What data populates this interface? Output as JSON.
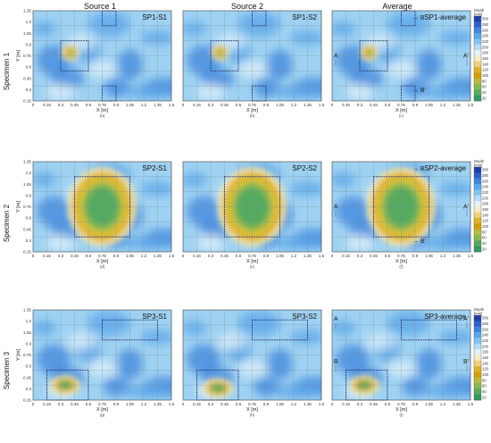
{
  "figure": {
    "column_headers": [
      "Source 1",
      "Source 2",
      "Average"
    ],
    "row_headers": [
      "Specimen 1",
      "Specimen 2",
      "Specimen 3"
    ]
  },
  "colorbar": {
    "title_line1": "Depth",
    "title_line2": "[mm]",
    "ticks": [
      "300",
      "280",
      "260",
      "240",
      "220",
      "200",
      "180",
      "160",
      "140",
      "120",
      "100",
      "80",
      "60",
      "40",
      "20"
    ],
    "colors": [
      "#1f3fa8",
      "#2b62c8",
      "#3f86dd",
      "#5aa6ea",
      "#84c4f1",
      "#b4dcf6",
      "#e2f2f8",
      "#f6ebc4",
      "#eed27a",
      "#e0b124",
      "#d2a000",
      "#b9bb3a",
      "#86b850",
      "#55aa5e",
      "#2f9a60"
    ]
  },
  "chart_data": [
    {
      "type": "heatmap",
      "title": "SP1-S1",
      "sublabel": "(a)",
      "xlabel": "X [m]",
      "ylabel": "Y [m]",
      "xticks": [
        "0",
        "0.15",
        "0.3",
        "0.45",
        "0.6",
        "0.75",
        "0.9",
        "1.05",
        "1.2",
        "1.35",
        "1.5"
      ],
      "yticks": [
        "0.15",
        "0.3",
        "0.45",
        "0.6",
        "0.75",
        "0.9",
        "1.05",
        "1.2",
        "1.35"
      ],
      "xlim": [
        0,
        1.5
      ],
      "ylim": [
        0.3,
        1.2
      ],
      "defect_zones": [
        [
          0.75,
          1.05,
          0.9,
          1.2
        ],
        [
          0.3,
          0.6,
          0.6,
          0.9
        ],
        [
          0.9,
          1.2,
          0.6,
          0.9
        ],
        [
          0.75,
          0.3,
          0.9,
          0.45
        ]
      ],
      "hot_spots": [
        {
          "x": 0.4,
          "y": 0.78,
          "depth": 120
        }
      ],
      "section_labels": []
    },
    {
      "type": "heatmap",
      "title": "SP1-S2",
      "sublabel": "(b)",
      "xlabel": "X [m]",
      "ylabel": "",
      "xticks": [
        "0",
        "0.15",
        "0.3",
        "0.45",
        "0.6",
        "0.75",
        "0.9",
        "1.05",
        "1.2",
        "1.35",
        "1.5"
      ],
      "yticks": [],
      "xlim": [
        0,
        1.5
      ],
      "ylim": [
        0.3,
        1.2
      ],
      "defect_zones": [
        [
          0.75,
          1.05,
          0.9,
          1.2
        ],
        [
          0.3,
          0.6,
          0.6,
          0.9
        ],
        [
          0.9,
          1.2,
          0.6,
          0.9
        ],
        [
          0.75,
          0.3,
          0.9,
          0.45
        ]
      ],
      "hot_spots": [
        {
          "x": 0.4,
          "y": 0.78,
          "depth": 120
        }
      ],
      "section_labels": []
    },
    {
      "type": "heatmap",
      "title": "SP1-average",
      "sublabel": "(c)",
      "xlabel": "X [m]",
      "ylabel": "",
      "xticks": [
        "0",
        "0.15",
        "0.3",
        "0.45",
        "0.6",
        "0.75",
        "0.9",
        "1.05",
        "1.2",
        "1.35",
        "1.5"
      ],
      "yticks": [],
      "xlim": [
        0,
        1.5
      ],
      "ylim": [
        0.3,
        1.2
      ],
      "defect_zones": [
        [
          0.75,
          1.05,
          0.9,
          1.2
        ],
        [
          0.3,
          0.6,
          0.6,
          0.9
        ],
        [
          0.9,
          1.2,
          0.6,
          0.9
        ],
        [
          0.75,
          0.3,
          0.9,
          0.45
        ]
      ],
      "hot_spots": [
        {
          "x": 0.4,
          "y": 0.78,
          "depth": 120
        }
      ],
      "section_labels": [
        "A",
        "A'",
        "B",
        "B'"
      ]
    },
    {
      "type": "heatmap",
      "title": "SP2-S1",
      "sublabel": "(d)",
      "xlabel": "X [m]",
      "ylabel": "Y [m]",
      "xticks": [
        "0",
        "0.15",
        "0.3",
        "0.45",
        "0.6",
        "0.75",
        "0.9",
        "1.05",
        "1.2",
        "1.35",
        "1.5"
      ],
      "yticks": [
        "0.15",
        "0.3",
        "0.45",
        "0.6",
        "0.75",
        "0.9",
        "1.05",
        "1.2",
        "1.35"
      ],
      "xlim": [
        0,
        1.5
      ],
      "ylim": [
        0.3,
        1.2
      ],
      "defect_zones": [
        [
          0.45,
          0.45,
          1.05,
          1.05
        ]
      ],
      "hot_spots": [
        {
          "x": 0.75,
          "y": 0.75,
          "depth": 40
        }
      ],
      "section_labels": []
    },
    {
      "type": "heatmap",
      "title": "SP2-S2",
      "sublabel": "(e)",
      "xlabel": "X [m]",
      "ylabel": "",
      "xticks": [
        "0",
        "0.15",
        "0.3",
        "0.45",
        "0.6",
        "0.75",
        "0.9",
        "1.05",
        "1.2",
        "1.35",
        "1.5"
      ],
      "yticks": [],
      "xlim": [
        0,
        1.5
      ],
      "ylim": [
        0.3,
        1.2
      ],
      "defect_zones": [
        [
          0.45,
          0.45,
          1.05,
          1.05
        ]
      ],
      "hot_spots": [
        {
          "x": 0.75,
          "y": 0.75,
          "depth": 40
        }
      ],
      "section_labels": []
    },
    {
      "type": "heatmap",
      "title": "SP2-average",
      "sublabel": "(f)",
      "xlabel": "X [m]",
      "ylabel": "",
      "xticks": [
        "0",
        "0.15",
        "0.3",
        "0.45",
        "0.6",
        "0.75",
        "0.9",
        "1.05",
        "1.2",
        "1.35",
        "1.5"
      ],
      "yticks": [],
      "xlim": [
        0,
        1.5
      ],
      "ylim": [
        0.3,
        1.2
      ],
      "defect_zones": [
        [
          0.45,
          0.45,
          1.05,
          1.05
        ]
      ],
      "hot_spots": [
        {
          "x": 0.75,
          "y": 0.75,
          "depth": 40
        }
      ],
      "section_labels": [
        "A",
        "A'",
        "B",
        "B'"
      ]
    },
    {
      "type": "heatmap",
      "title": "SP3-S1",
      "sublabel": "(g)",
      "xlabel": "X [m]",
      "ylabel": "Y [m]",
      "xticks": [
        "0",
        "0.15",
        "0.3",
        "0.45",
        "0.6",
        "0.75",
        "0.9",
        "1.05",
        "1.2",
        "1.35",
        "1.5"
      ],
      "yticks": [
        "0.15",
        "0.3",
        "0.45",
        "0.6",
        "0.75",
        "0.9",
        "1.05",
        "1.2",
        "1.35"
      ],
      "xlim": [
        0,
        1.5
      ],
      "ylim": [
        0.3,
        1.2
      ],
      "defect_zones": [
        [
          0.75,
          0.9,
          1.35,
          1.1
        ],
        [
          0.15,
          0.3,
          0.6,
          0.6
        ]
      ],
      "hot_spots": [
        {
          "x": 0.35,
          "y": 0.45,
          "depth": 40
        }
      ],
      "section_labels": []
    },
    {
      "type": "heatmap",
      "title": "SP3-S2",
      "sublabel": "(h)",
      "xlabel": "X [m]",
      "ylabel": "",
      "xticks": [
        "0",
        "0.15",
        "0.3",
        "0.45",
        "0.6",
        "0.75",
        "0.9",
        "1.05",
        "1.2",
        "1.35",
        "1.5"
      ],
      "yticks": [],
      "xlim": [
        0,
        1.5
      ],
      "ylim": [
        0.3,
        1.2
      ],
      "defect_zones": [
        [
          0.75,
          0.9,
          1.35,
          1.1
        ],
        [
          0.15,
          0.3,
          0.6,
          0.6
        ]
      ],
      "hot_spots": [
        {
          "x": 0.38,
          "y": 0.42,
          "depth": 40
        }
      ],
      "section_labels": []
    },
    {
      "type": "heatmap",
      "title": "SP3-average",
      "sublabel": "(i)",
      "xlabel": "X [m]",
      "ylabel": "",
      "xticks": [
        "0",
        "0.15",
        "0.3",
        "0.45",
        "0.6",
        "0.75",
        "0.9",
        "1.05",
        "1.2",
        "1.35",
        "1.5"
      ],
      "yticks": [],
      "xlim": [
        0,
        1.5
      ],
      "ylim": [
        0.3,
        1.2
      ],
      "defect_zones": [
        [
          0.75,
          0.9,
          1.35,
          1.1
        ],
        [
          0.15,
          0.3,
          0.6,
          0.6
        ]
      ],
      "hot_spots": [
        {
          "x": 0.35,
          "y": 0.45,
          "depth": 40
        }
      ],
      "section_labels": [
        "A",
        "A'",
        "B",
        "B'"
      ]
    }
  ]
}
